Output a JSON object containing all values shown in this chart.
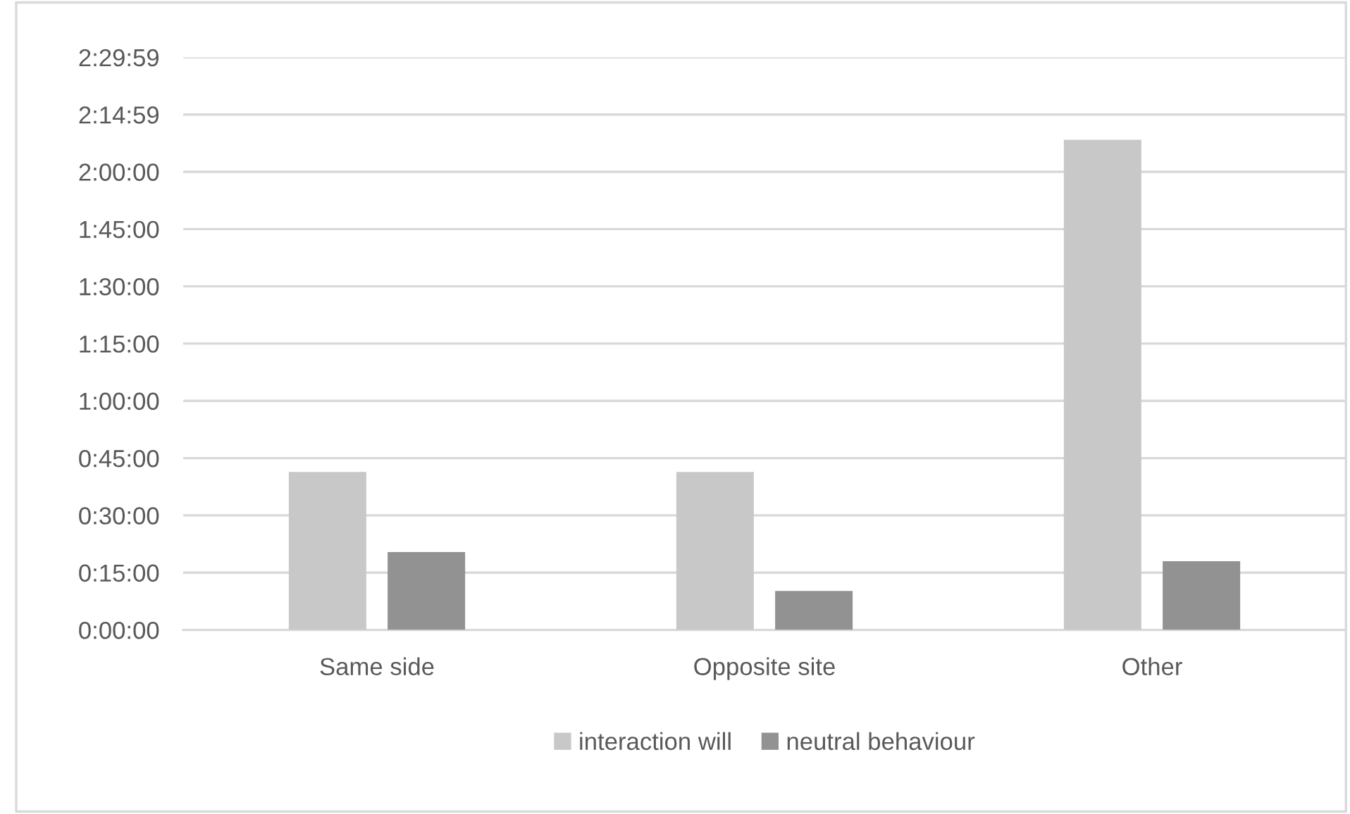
{
  "chart_data": {
    "type": "bar",
    "categories": [
      "Same side",
      "Opposite site",
      "Other"
    ],
    "series": [
      {
        "name": "interaction will",
        "color": "#c8c8c8",
        "values": [
          0.69,
          0.69,
          2.14
        ]
      },
      {
        "name": "neutral behaviour",
        "color": "#929292",
        "values": [
          0.34,
          0.17,
          0.3
        ]
      }
    ],
    "ylim": [
      0,
      2.4997
    ],
    "yticks": [
      {
        "value": 0,
        "label": "0:00:00"
      },
      {
        "value": 0.25,
        "label": "0:15:00"
      },
      {
        "value": 0.5,
        "label": "0:30:00"
      },
      {
        "value": 0.75,
        "label": "0:45:00"
      },
      {
        "value": 1,
        "label": "1:00:00"
      },
      {
        "value": 1.25,
        "label": "1:15:00"
      },
      {
        "value": 1.5,
        "label": "1:30:00"
      },
      {
        "value": 1.75,
        "label": "1:45:00"
      },
      {
        "value": 2,
        "label": "2:00:00"
      },
      {
        "value": 2.2497,
        "label": "2:14:59"
      },
      {
        "value": 2.4997,
        "label": "2:29:59"
      }
    ],
    "grid": "y",
    "legend": "bottom"
  }
}
